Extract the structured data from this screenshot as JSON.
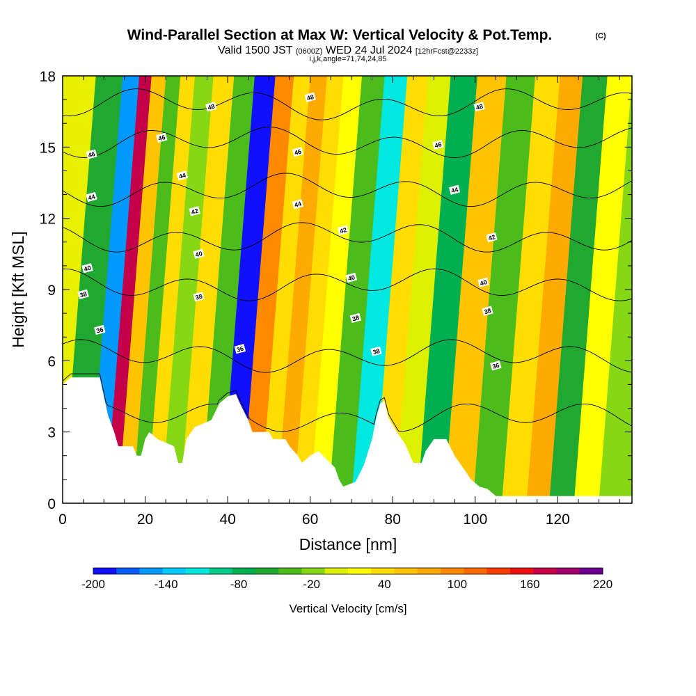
{
  "titles": {
    "main": "Wind-Parallel Section at Max W: Vertical Velocity & Pot.Temp.",
    "copyright": "(C)",
    "valid_prefix": "Valid 1500 JST",
    "valid_utc": "(0600Z)",
    "valid_date": "WED 24 Jul 2024",
    "forecast": "[12hrFcst@2233z]",
    "indices": "i,j,k,angle=71,74,24,85"
  },
  "chart_data": {
    "type": "heatmap",
    "xlabel": "Distance [nm]",
    "ylabel": "Height [Kft MSL]",
    "xlim": [
      0,
      138
    ],
    "ylim": [
      0,
      18
    ],
    "x_ticks": [
      0,
      20,
      40,
      60,
      80,
      100,
      120
    ],
    "y_ticks": [
      0,
      3,
      6,
      9,
      12,
      15,
      18
    ],
    "colorbar": {
      "title": "Vertical Velocity [cm/s]",
      "levels": [
        -200,
        -180,
        -160,
        -140,
        -120,
        -100,
        -80,
        -60,
        -40,
        -20,
        0,
        20,
        40,
        60,
        80,
        100,
        120,
        140,
        160,
        180,
        200,
        220
      ],
      "tick_labels": [
        "-200",
        "-140",
        "-80",
        "-20",
        "40",
        "100",
        "160",
        "220"
      ],
      "colors": [
        "#1010ff",
        "#0a5cff",
        "#0099ff",
        "#00ccff",
        "#00e8e0",
        "#00cc88",
        "#00b050",
        "#20a830",
        "#4cbc1c",
        "#86d814",
        "#ddf000",
        "#ffff00",
        "#ffdd00",
        "#ffc400",
        "#ffaa00",
        "#ff8a00",
        "#ff6a00",
        "#ff3c00",
        "#ee1010",
        "#c4004a",
        "#a0006e",
        "#6a0090"
      ]
    },
    "vertical_velocity_bands": [
      {
        "x": 4,
        "w": -60
      },
      {
        "x": 9,
        "w": -160
      },
      {
        "x": 12,
        "w": 180
      },
      {
        "x": 15,
        "w": 60
      },
      {
        "x": 19,
        "w": -40
      },
      {
        "x": 22,
        "w": 40
      },
      {
        "x": 26,
        "w": -20
      },
      {
        "x": 31,
        "w": 40
      },
      {
        "x": 36,
        "w": -40
      },
      {
        "x": 41,
        "w": -200
      },
      {
        "x": 46,
        "w": 100
      },
      {
        "x": 50,
        "w": 40
      },
      {
        "x": 54,
        "w": 80
      },
      {
        "x": 58,
        "w": 40
      },
      {
        "x": 62,
        "w": 20
      },
      {
        "x": 67,
        "w": -30
      },
      {
        "x": 73,
        "w": -120
      },
      {
        "x": 78,
        "w": 40
      },
      {
        "x": 83,
        "w": 0
      },
      {
        "x": 89,
        "w": -80
      },
      {
        "x": 96,
        "w": 60
      },
      {
        "x": 103,
        "w": -40
      },
      {
        "x": 110,
        "w": 40
      },
      {
        "x": 115,
        "w": 80
      },
      {
        "x": 121,
        "w": -60
      },
      {
        "x": 127,
        "w": 20
      },
      {
        "x": 133,
        "w": -20
      }
    ],
    "terrain": [
      {
        "x": 0,
        "h": 5.0
      },
      {
        "x": 2,
        "h": 5.3
      },
      {
        "x": 9,
        "h": 5.3
      },
      {
        "x": 11,
        "h": 3.7
      },
      {
        "x": 12.5,
        "h": 3.0
      },
      {
        "x": 13.5,
        "h": 2.4
      },
      {
        "x": 17,
        "h": 2.4
      },
      {
        "x": 18,
        "h": 2.0
      },
      {
        "x": 19,
        "h": 2.0
      },
      {
        "x": 20,
        "h": 2.7
      },
      {
        "x": 21,
        "h": 3.0
      },
      {
        "x": 23,
        "h": 2.7
      },
      {
        "x": 27,
        "h": 2.4
      },
      {
        "x": 28,
        "h": 1.7
      },
      {
        "x": 29,
        "h": 1.7
      },
      {
        "x": 30,
        "h": 2.7
      },
      {
        "x": 32,
        "h": 3.2
      },
      {
        "x": 36,
        "h": 3.5
      },
      {
        "x": 38,
        "h": 4.2
      },
      {
        "x": 40,
        "h": 4.5
      },
      {
        "x": 42,
        "h": 4.6
      },
      {
        "x": 43,
        "h": 4.2
      },
      {
        "x": 45,
        "h": 3.5
      },
      {
        "x": 46,
        "h": 3.0
      },
      {
        "x": 50,
        "h": 3.0
      },
      {
        "x": 51,
        "h": 2.7
      },
      {
        "x": 54,
        "h": 2.7
      },
      {
        "x": 55,
        "h": 2.4
      },
      {
        "x": 57,
        "h": 2.0
      },
      {
        "x": 58,
        "h": 1.7
      },
      {
        "x": 60,
        "h": 2.0
      },
      {
        "x": 62,
        "h": 2.2
      },
      {
        "x": 66,
        "h": 1.5
      },
      {
        "x": 67,
        "h": 1.0
      },
      {
        "x": 68,
        "h": 0.7
      },
      {
        "x": 71,
        "h": 0.9
      },
      {
        "x": 73,
        "h": 1.6
      },
      {
        "x": 75,
        "h": 2.7
      },
      {
        "x": 76,
        "h": 3.6
      },
      {
        "x": 77,
        "h": 4.2
      },
      {
        "x": 78,
        "h": 4.3
      },
      {
        "x": 79,
        "h": 3.6
      },
      {
        "x": 81,
        "h": 3.0
      },
      {
        "x": 83,
        "h": 2.5
      },
      {
        "x": 85,
        "h": 1.7
      },
      {
        "x": 87,
        "h": 1.7
      },
      {
        "x": 88,
        "h": 2.2
      },
      {
        "x": 90,
        "h": 2.7
      },
      {
        "x": 93,
        "h": 2.7
      },
      {
        "x": 95,
        "h": 2.0
      },
      {
        "x": 97,
        "h": 1.5
      },
      {
        "x": 99,
        "h": 1.0
      },
      {
        "x": 101,
        "h": 0.7
      },
      {
        "x": 103,
        "h": 0.6
      },
      {
        "x": 105,
        "h": 0.3
      },
      {
        "x": 138,
        "h": 0.3
      }
    ],
    "theta_contours": [
      {
        "level": 36,
        "base": 3.6,
        "label_x": 104
      },
      {
        "level": 38,
        "base": 6.2,
        "label_x": 102
      },
      {
        "level": 40,
        "base": 9.2,
        "label_x": 102
      },
      {
        "level": 42,
        "base": 11.2,
        "label_x": 104
      },
      {
        "level": 44,
        "base": 13.2,
        "label_x": 95
      },
      {
        "level": 46,
        "base": 15.2,
        "label_x": 91
      },
      {
        "level": 48,
        "base": 16.8,
        "label_x": 101
      }
    ],
    "contour_labels": [
      {
        "text": "48",
        "x": 36,
        "y": 16.7
      },
      {
        "text": "48",
        "x": 60,
        "y": 17.1
      },
      {
        "text": "48",
        "x": 101,
        "y": 16.7
      },
      {
        "text": "46",
        "x": 24,
        "y": 15.4
      },
      {
        "text": "46",
        "x": 7,
        "y": 14.7
      },
      {
        "text": "46",
        "x": 57,
        "y": 14.8
      },
      {
        "text": "46",
        "x": 91,
        "y": 15.1
      },
      {
        "text": "44",
        "x": 29,
        "y": 13.8
      },
      {
        "text": "44",
        "x": 7,
        "y": 12.9
      },
      {
        "text": "44",
        "x": 57,
        "y": 12.6
      },
      {
        "text": "44",
        "x": 95,
        "y": 13.2
      },
      {
        "text": "42",
        "x": 32,
        "y": 12.3
      },
      {
        "text": "42",
        "x": 68,
        "y": 11.5
      },
      {
        "text": "42",
        "x": 104,
        "y": 11.2
      },
      {
        "text": "40",
        "x": 33,
        "y": 10.5
      },
      {
        "text": "40",
        "x": 6,
        "y": 9.9
      },
      {
        "text": "40",
        "x": 70,
        "y": 9.5
      },
      {
        "text": "40",
        "x": 102,
        "y": 9.3
      },
      {
        "text": "38",
        "x": 33,
        "y": 8.7
      },
      {
        "text": "38",
        "x": 5,
        "y": 8.8
      },
      {
        "text": "38",
        "x": 71,
        "y": 7.8
      },
      {
        "text": "38",
        "x": 103,
        "y": 8.1
      },
      {
        "text": "38",
        "x": 76,
        "y": 6.4
      },
      {
        "text": "36",
        "x": 9,
        "y": 7.3
      },
      {
        "text": "36",
        "x": 43,
        "y": 6.5
      },
      {
        "text": "36",
        "x": 105,
        "y": 5.8
      }
    ]
  }
}
